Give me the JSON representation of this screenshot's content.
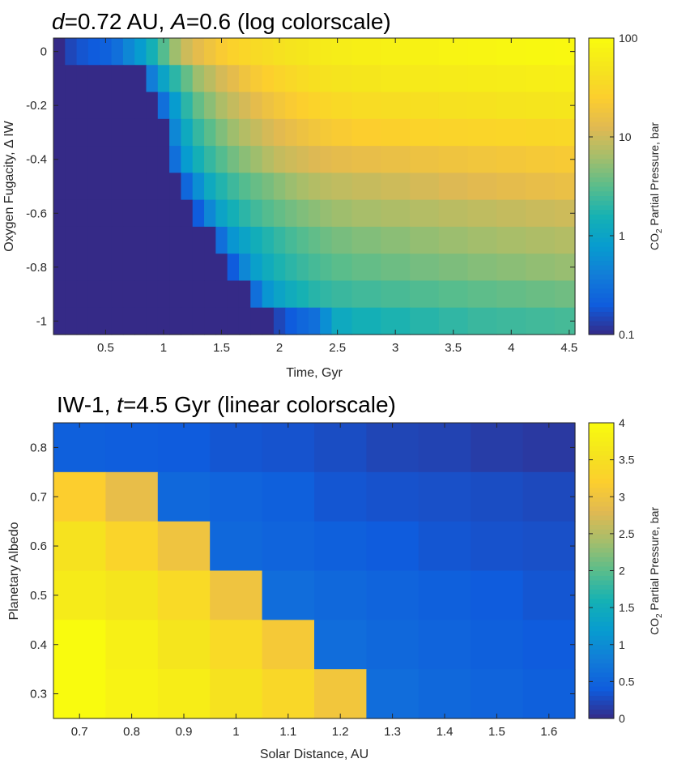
{
  "chart_data": [
    {
      "type": "heatmap",
      "title": {
        "pre": "d",
        "mid": "=0.72 AU, ",
        "var2": "A",
        "post": "=0.6 (log colorscale)"
      },
      "xlabel": "Time, Gyr",
      "ylabel": "Oxygen Fugacity, Δ IW",
      "xticks": [
        0.5,
        1,
        1.5,
        2,
        2.5,
        3,
        3.5,
        4,
        4.5
      ],
      "xtick_labels": [
        "0.5",
        "1",
        "1.5",
        "2",
        "2.5",
        "3",
        "3.5",
        "4",
        "4.5"
      ],
      "yticks": [
        0,
        -0.2,
        -0.4,
        -0.6,
        -0.8,
        -1
      ],
      "ytick_labels": [
        "0",
        "-0.2",
        "-0.4",
        "-0.6",
        "-0.8",
        "-1"
      ],
      "xlim": [
        0.05,
        4.55
      ],
      "ylim": [
        -1.05,
        0.05
      ],
      "x_centers": [
        0.1,
        0.2,
        0.3,
        0.4,
        0.5,
        0.6,
        0.7,
        0.8,
        0.9,
        1.0,
        1.1,
        1.2,
        1.3,
        1.4,
        1.5,
        1.6,
        1.7,
        1.8,
        1.9,
        2.0,
        2.1,
        2.2,
        2.3,
        2.4,
        2.5,
        2.75,
        3.0,
        3.25,
        3.5,
        3.75,
        4.0,
        4.25,
        4.5
      ],
      "y_centers": [
        0,
        -0.1,
        -0.2,
        -0.3,
        -0.4,
        -0.5,
        -0.6,
        -0.7,
        -0.8,
        -0.9,
        -1.0
      ],
      "values_note": "CO2 partial pressure in bar, rows top (0) to bottom (-1)",
      "values": [
        [
          0.1,
          0.15,
          0.18,
          0.2,
          0.22,
          0.3,
          0.5,
          0.8,
          1.5,
          3,
          6,
          10,
          14,
          18,
          23,
          28,
          32,
          36,
          40,
          44,
          48,
          52,
          56,
          60,
          64,
          68,
          72,
          76,
          80,
          84,
          88,
          90,
          92
        ],
        [
          0.1,
          0.1,
          0.1,
          0.1,
          0.1,
          0.1,
          0.1,
          0.1,
          0.4,
          1.0,
          2.0,
          3.5,
          6,
          8,
          11,
          14,
          18,
          22,
          26,
          30,
          34,
          38,
          42,
          46,
          48,
          52,
          56,
          58,
          60,
          62,
          64,
          66,
          68
        ],
        [
          0.1,
          0.1,
          0.1,
          0.1,
          0.1,
          0.1,
          0.1,
          0.1,
          0.1,
          0.3,
          0.8,
          2.0,
          3.5,
          5,
          7,
          9,
          11,
          14,
          17,
          20,
          23,
          26,
          29,
          32,
          35,
          38,
          40,
          42,
          44,
          46,
          48,
          50,
          52
        ],
        [
          0.1,
          0.1,
          0.1,
          0.1,
          0.1,
          0.1,
          0.1,
          0.1,
          0.1,
          0.1,
          0.5,
          1.2,
          2.2,
          3.2,
          4.5,
          6,
          7.5,
          9,
          11,
          13,
          15,
          17,
          19,
          21,
          23,
          25,
          27,
          29,
          30,
          31,
          32,
          33,
          34
        ],
        [
          0.1,
          0.1,
          0.1,
          0.1,
          0.1,
          0.1,
          0.1,
          0.1,
          0.1,
          0.1,
          0.3,
          0.8,
          1.5,
          2.2,
          3,
          4,
          5,
          6,
          7.5,
          9,
          10,
          11,
          12,
          13,
          14,
          15,
          16,
          17,
          18,
          19,
          20,
          21,
          22
        ],
        [
          0.1,
          0.1,
          0.1,
          0.1,
          0.1,
          0.1,
          0.1,
          0.1,
          0.1,
          0.1,
          0.1,
          0.25,
          0.6,
          1.2,
          1.8,
          2.4,
          3,
          3.6,
          4.2,
          5,
          5.8,
          6.6,
          7.4,
          8,
          8.6,
          9.2,
          10,
          11,
          12,
          13,
          14,
          15,
          16
        ],
        [
          0.1,
          0.1,
          0.1,
          0.1,
          0.1,
          0.1,
          0.1,
          0.1,
          0.1,
          0.1,
          0.1,
          0.1,
          0.2,
          0.5,
          1.0,
          1.5,
          2.0,
          2.5,
          3.0,
          3.5,
          4,
          4.5,
          5,
          5.5,
          6,
          6.5,
          7,
          7.5,
          8,
          8.5,
          9,
          9.5,
          10
        ],
        [
          0.1,
          0.1,
          0.1,
          0.1,
          0.1,
          0.1,
          0.1,
          0.1,
          0.1,
          0.1,
          0.1,
          0.1,
          0.1,
          0.1,
          0.3,
          0.7,
          1.0,
          1.4,
          1.8,
          2.2,
          2.6,
          3,
          3.4,
          3.8,
          4.2,
          4.6,
          5,
          5.4,
          5.8,
          6.2,
          6.6,
          7,
          7.4
        ],
        [
          0.1,
          0.1,
          0.1,
          0.1,
          0.1,
          0.1,
          0.1,
          0.1,
          0.1,
          0.1,
          0.1,
          0.1,
          0.1,
          0.1,
          0.1,
          0.2,
          0.5,
          0.9,
          1.3,
          1.7,
          2.0,
          2.3,
          2.6,
          2.9,
          3.2,
          3.5,
          3.8,
          4.1,
          4.4,
          4.7,
          5,
          5.3,
          5.6
        ],
        [
          0.1,
          0.1,
          0.1,
          0.1,
          0.1,
          0.1,
          0.1,
          0.1,
          0.1,
          0.1,
          0.1,
          0.1,
          0.1,
          0.1,
          0.1,
          0.1,
          0.1,
          0.3,
          0.7,
          1.0,
          1.3,
          1.6,
          1.9,
          2.1,
          2.3,
          2.5,
          2.7,
          2.9,
          3.1,
          3.3,
          3.5,
          3.7,
          3.9
        ],
        [
          0.1,
          0.1,
          0.1,
          0.1,
          0.1,
          0.1,
          0.1,
          0.1,
          0.1,
          0.1,
          0.1,
          0.1,
          0.1,
          0.1,
          0.1,
          0.1,
          0.1,
          0.1,
          0.1,
          0.15,
          0.2,
          0.25,
          0.3,
          0.6,
          1.2,
          1.5,
          1.7,
          1.9,
          2.1,
          2.3,
          2.4,
          2.5,
          2.6
        ]
      ],
      "colorbar": {
        "scale": "log",
        "range": [
          0.1,
          100
        ],
        "ticks": [
          0.1,
          1,
          10,
          100
        ],
        "tick_labels": [
          "0.1",
          "1",
          "10",
          "100"
        ],
        "label_pre": "CO",
        "label_sub": "2",
        "label_post": " Partial Pressure, bar"
      }
    },
    {
      "type": "heatmap",
      "title": {
        "pre": "IW-1, ",
        "var": "t",
        "post": "=4.5 Gyr (linear colorscale)"
      },
      "xlabel": "Solar Distance, AU",
      "ylabel": "Planetary Albedo",
      "xticks": [
        0.7,
        0.8,
        0.9,
        1,
        1.1,
        1.2,
        1.3,
        1.4,
        1.5,
        1.6
      ],
      "xtick_labels": [
        "0.7",
        "0.8",
        "0.9",
        "1",
        "1.1",
        "1.2",
        "1.3",
        "1.4",
        "1.5",
        "1.6"
      ],
      "yticks": [
        0.3,
        0.4,
        0.5,
        0.6,
        0.7,
        0.8
      ],
      "ytick_labels": [
        "0.3",
        "0.4",
        "0.5",
        "0.6",
        "0.7",
        "0.8"
      ],
      "xlim": [
        0.65,
        1.65
      ],
      "ylim": [
        0.25,
        0.85
      ],
      "x_centers": [
        0.7,
        0.8,
        0.9,
        1.0,
        1.1,
        1.2,
        1.3,
        1.4,
        1.5,
        1.6
      ],
      "y_centers": [
        0.8,
        0.7,
        0.6,
        0.5,
        0.4,
        0.3
      ],
      "values_note": "CO2 partial pressure in bar, rows top (0.8) to bottom (0.3)",
      "values": [
        [
          0.45,
          0.42,
          0.4,
          0.35,
          0.33,
          0.28,
          0.22,
          0.2,
          0.15,
          0.12
        ],
        [
          3.2,
          2.9,
          0.55,
          0.5,
          0.45,
          0.35,
          0.32,
          0.3,
          0.28,
          0.25
        ],
        [
          3.55,
          3.3,
          3.0,
          0.55,
          0.5,
          0.45,
          0.4,
          0.35,
          0.32,
          0.3
        ],
        [
          3.7,
          3.6,
          3.4,
          3.0,
          0.6,
          0.55,
          0.5,
          0.45,
          0.4,
          0.35
        ],
        [
          4.0,
          3.8,
          3.6,
          3.4,
          3.1,
          0.6,
          0.55,
          0.5,
          0.45,
          0.4
        ],
        [
          4.0,
          3.85,
          3.75,
          3.55,
          3.35,
          3.05,
          0.6,
          0.55,
          0.5,
          0.45
        ]
      ],
      "colorbar": {
        "scale": "linear",
        "range": [
          0,
          4
        ],
        "ticks": [
          0,
          0.5,
          1,
          1.5,
          2,
          2.5,
          3,
          3.5,
          4
        ],
        "tick_labels": [
          "0",
          "0.5",
          "1",
          "1.5",
          "2",
          "2.5",
          "3",
          "3.5",
          "4"
        ],
        "label_pre": "CO",
        "label_sub": "2",
        "label_post": " Partial Pressure, bar"
      }
    }
  ]
}
